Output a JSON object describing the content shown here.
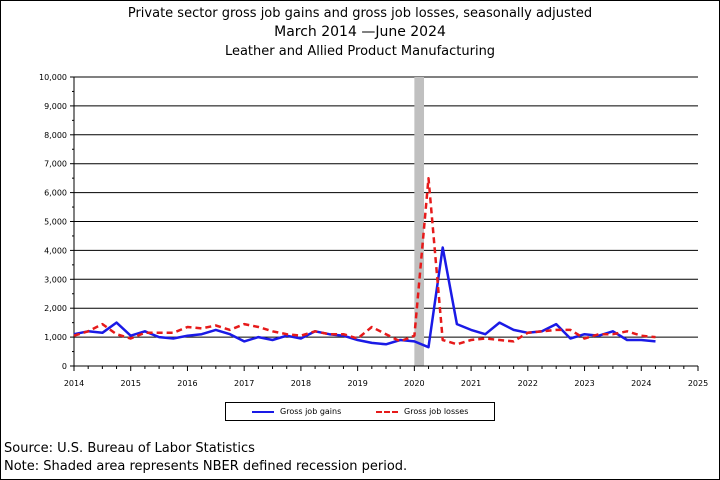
{
  "title": {
    "line1": "Private sector gross job gains and gross job losses, seasonally adjusted",
    "line2": "March 2014 —June 2024",
    "line3": "Leather and Allied Product Manufacturing"
  },
  "chart_data": {
    "type": "line",
    "title": "Private sector gross job gains and gross job losses, seasonally adjusted",
    "subtitle": "March 2014 —June 2024 — Leather and Allied Product Manufacturing",
    "xlabel": "",
    "ylabel": "",
    "xlim": [
      2014,
      2025
    ],
    "ylim": [
      0,
      10000
    ],
    "x_ticks": [
      "2014",
      "2015",
      "2016",
      "2017",
      "2018",
      "2019",
      "2020",
      "2021",
      "2022",
      "2023",
      "2024",
      "2025"
    ],
    "y_ticks": [
      "0",
      "1,000",
      "2,000",
      "3,000",
      "4,000",
      "5,000",
      "6,000",
      "7,000",
      "8,000",
      "9,000",
      "10,000"
    ],
    "grid": "horizontal",
    "legend_position": "bottom",
    "recession_shading": {
      "start": 2020.0,
      "end": 2020.17,
      "color": "#c0c0c0"
    },
    "x": [
      2014.0,
      2014.25,
      2014.5,
      2014.75,
      2015.0,
      2015.25,
      2015.5,
      2015.75,
      2016.0,
      2016.25,
      2016.5,
      2016.75,
      2017.0,
      2017.25,
      2017.5,
      2017.75,
      2018.0,
      2018.25,
      2018.5,
      2018.75,
      2019.0,
      2019.25,
      2019.5,
      2019.75,
      2020.0,
      2020.25,
      2020.5,
      2020.75,
      2021.0,
      2021.25,
      2021.5,
      2021.75,
      2022.0,
      2022.25,
      2022.5,
      2022.75,
      2023.0,
      2023.25,
      2023.5,
      2023.75,
      2024.0,
      2024.25
    ],
    "series": [
      {
        "name": "Gross job gains",
        "color": "#1a1ae6",
        "style": "solid",
        "values": [
          1100,
          1200,
          1150,
          1500,
          1050,
          1200,
          1000,
          950,
          1050,
          1100,
          1250,
          1100,
          850,
          1000,
          900,
          1050,
          950,
          1200,
          1100,
          1050,
          900,
          800,
          750,
          900,
          850,
          650,
          4100,
          1450,
          1250,
          1100,
          1500,
          1250,
          1150,
          1200,
          1450,
          950,
          1100,
          1050,
          1200,
          900,
          900,
          850
        ]
      },
      {
        "name": "Gross job losses",
        "color": "#e61a1a",
        "style": "dashed",
        "values": [
          1050,
          1200,
          1450,
          1100,
          950,
          1150,
          1150,
          1150,
          1350,
          1300,
          1400,
          1250,
          1450,
          1350,
          1200,
          1100,
          1050,
          1200,
          1100,
          1100,
          950,
          1350,
          1100,
          850,
          1050,
          6500,
          900,
          750,
          900,
          950,
          900,
          850,
          1150,
          1200,
          1250,
          1250,
          950,
          1100,
          1100,
          1200,
          1050,
          1000
        ]
      }
    ]
  },
  "legend": {
    "gains_label": "Gross job gains",
    "losses_label": "Gross job losses"
  },
  "footer": {
    "source": "Source: U.S. Bureau of Labor Statistics",
    "note": "Note: Shaded area represents NBER defined recession period."
  }
}
